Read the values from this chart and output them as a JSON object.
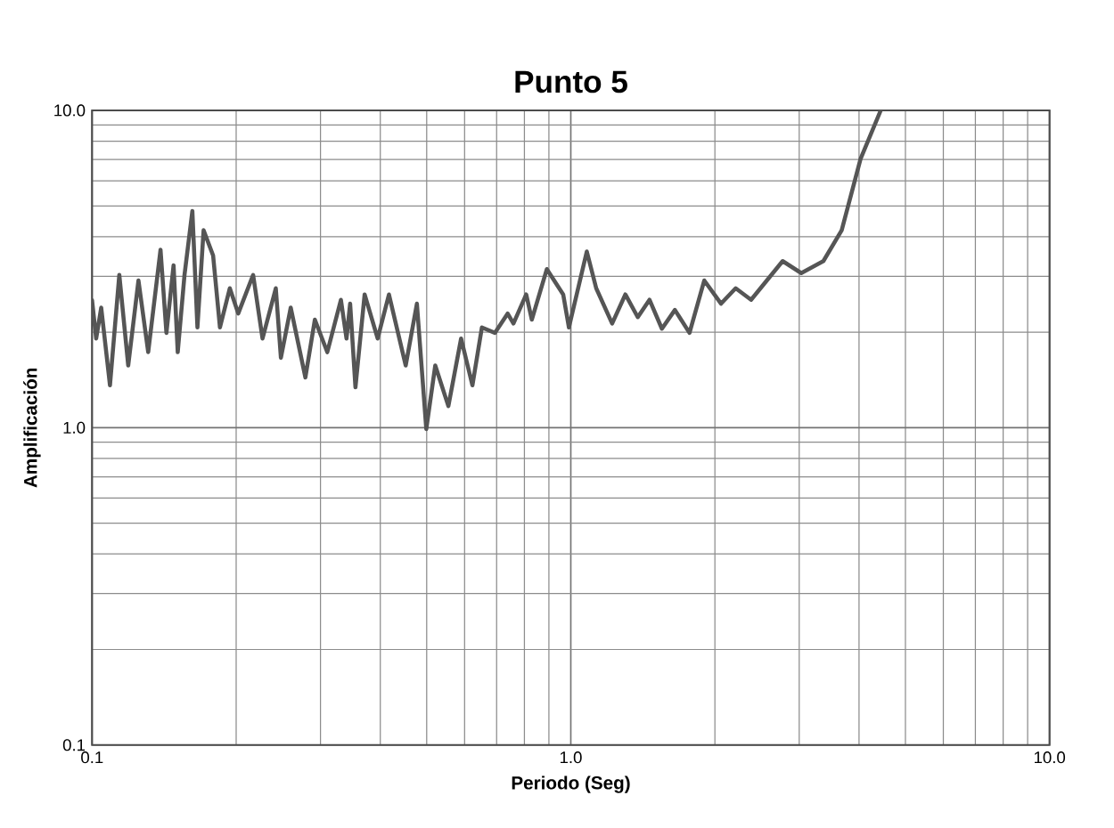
{
  "chart_data": {
    "type": "line",
    "title": "Punto 5",
    "xlabel": "Periodo (Seg)",
    "ylabel": "Amplificación",
    "log": "xy",
    "grid": true,
    "marker": "none",
    "line_style": "solid",
    "xlim": [
      0.1,
      10
    ],
    "ylim": [
      0.1,
      10
    ],
    "xticks": [
      {
        "value": 0.1,
        "label": "0.1"
      },
      {
        "value": 1,
        "label": "1.0"
      },
      {
        "value": 10,
        "label": "10.0"
      }
    ],
    "yticks": [
      {
        "value": 0.1,
        "label": "0.1"
      },
      {
        "value": 1,
        "label": "1.0"
      },
      {
        "value": 10,
        "label": "10.0"
      }
    ],
    "series": [
      {
        "color": "#555555",
        "x": [
          0.1,
          0.102,
          0.1045,
          0.109,
          0.114,
          0.119,
          0.125,
          0.131,
          0.139,
          0.143,
          0.148,
          0.151,
          0.156,
          0.162,
          0.166,
          0.171,
          0.179,
          0.185,
          0.194,
          0.202,
          0.217,
          0.227,
          0.242,
          0.248,
          0.26,
          0.279,
          0.292,
          0.31,
          0.331,
          0.34,
          0.346,
          0.355,
          0.371,
          0.395,
          0.417,
          0.452,
          0.477,
          0.499,
          0.521,
          0.555,
          0.59,
          0.623,
          0.652,
          0.694,
          0.738,
          0.759,
          0.807,
          0.829,
          0.891,
          0.964,
          0.991,
          1.08,
          1.13,
          1.22,
          1.3,
          1.38,
          1.46,
          1.55,
          1.65,
          1.77,
          1.9,
          2.06,
          2.21,
          2.38,
          2.77,
          3.03,
          3.37,
          3.68,
          4.03,
          4.44
        ],
        "values": [
          2.52,
          1.91,
          2.39,
          1.36,
          3.03,
          1.57,
          2.91,
          1.73,
          3.64,
          1.99,
          3.25,
          1.73,
          3.03,
          4.82,
          2.07,
          4.19,
          3.49,
          2.07,
          2.75,
          2.29,
          3.03,
          1.91,
          2.75,
          1.66,
          2.39,
          1.44,
          2.19,
          1.73,
          2.53,
          1.91,
          2.46,
          1.34,
          2.63,
          1.91,
          2.63,
          1.57,
          2.46,
          0.99,
          1.57,
          1.17,
          1.91,
          1.36,
          2.07,
          1.99,
          2.29,
          2.13,
          2.63,
          2.19,
          3.16,
          2.63,
          2.07,
          3.59,
          2.75,
          2.13,
          2.63,
          2.23,
          2.53,
          2.05,
          2.35,
          1.99,
          2.91,
          2.46,
          2.75,
          2.53,
          3.35,
          3.07,
          3.35,
          4.19,
          7.04,
          10
        ]
      }
    ]
  }
}
